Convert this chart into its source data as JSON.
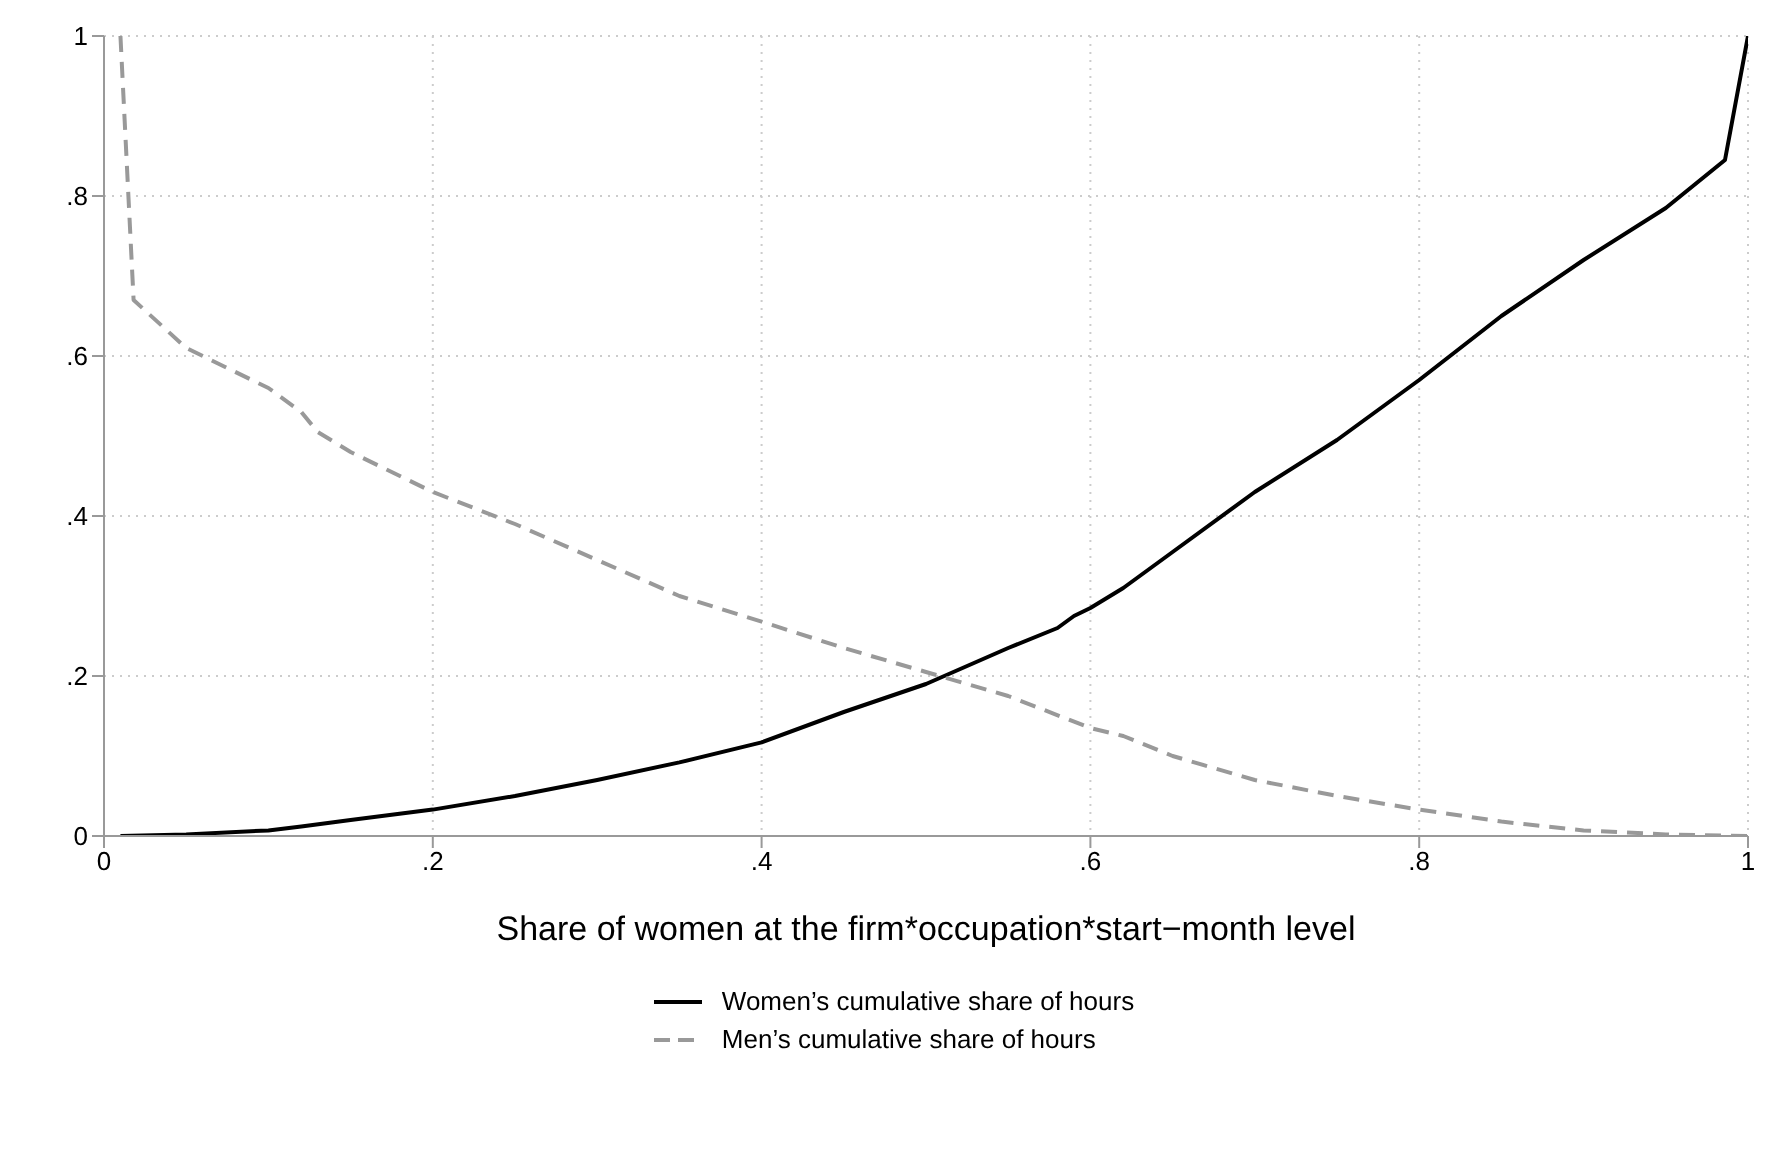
{
  "chart_data": {
    "type": "line",
    "xlabel": "Share of women at the firm*occupation*start−month level",
    "xlim": [
      0,
      1
    ],
    "ylim": [
      0,
      1
    ],
    "xticks": [
      0,
      {
        "value": 0.2,
        "label": ".2"
      },
      {
        "value": 0.4,
        "label": ".4"
      },
      {
        "value": 0.6,
        "label": ".6"
      },
      {
        "value": 0.8,
        "label": ".8"
      },
      1
    ],
    "yticks": [
      0,
      {
        "value": 0.2,
        "label": ".2"
      },
      {
        "value": 0.4,
        "label": ".4"
      },
      {
        "value": 0.6,
        "label": ".6"
      },
      {
        "value": 0.8,
        "label": ".8"
      },
      1
    ],
    "grid": true,
    "legend": "bottom",
    "marker": "none",
    "series": [
      {
        "name": "Women’s cumulative share of hours",
        "color": "#000000",
        "line_style": "solid",
        "x": [
          0.01,
          0.05,
          0.1,
          0.12,
          0.15,
          0.2,
          0.25,
          0.3,
          0.35,
          0.4,
          0.45,
          0.5,
          0.55,
          0.58,
          0.59,
          0.6,
          0.62,
          0.65,
          0.7,
          0.75,
          0.78,
          0.8,
          0.85,
          0.9,
          0.95,
          0.986,
          1
        ],
        "values": [
          0,
          0.002,
          0.007,
          0.012,
          0.02,
          0.033,
          0.05,
          0.07,
          0.092,
          0.117,
          0.155,
          0.19,
          0.235,
          0.26,
          0.275,
          0.285,
          0.31,
          0.355,
          0.43,
          0.495,
          0.54,
          0.57,
          0.65,
          0.72,
          0.785,
          0.845,
          1
        ]
      },
      {
        "name": "Men’s cumulative share of hours",
        "color": "#999999",
        "line_style": "dashed",
        "x": [
          0.01,
          0.018,
          0.05,
          0.1,
          0.12,
          0.13,
          0.15,
          0.2,
          0.25,
          0.3,
          0.35,
          0.4,
          0.45,
          0.5,
          0.55,
          0.6,
          0.62,
          0.65,
          0.7,
          0.75,
          0.8,
          0.85,
          0.9,
          0.95,
          1
        ],
        "values": [
          1,
          0.67,
          0.61,
          0.56,
          0.53,
          0.505,
          0.48,
          0.43,
          0.39,
          0.345,
          0.3,
          0.268,
          0.235,
          0.205,
          0.175,
          0.135,
          0.125,
          0.1,
          0.07,
          0.05,
          0.033,
          0.018,
          0.007,
          0.002,
          0
        ]
      }
    ]
  }
}
